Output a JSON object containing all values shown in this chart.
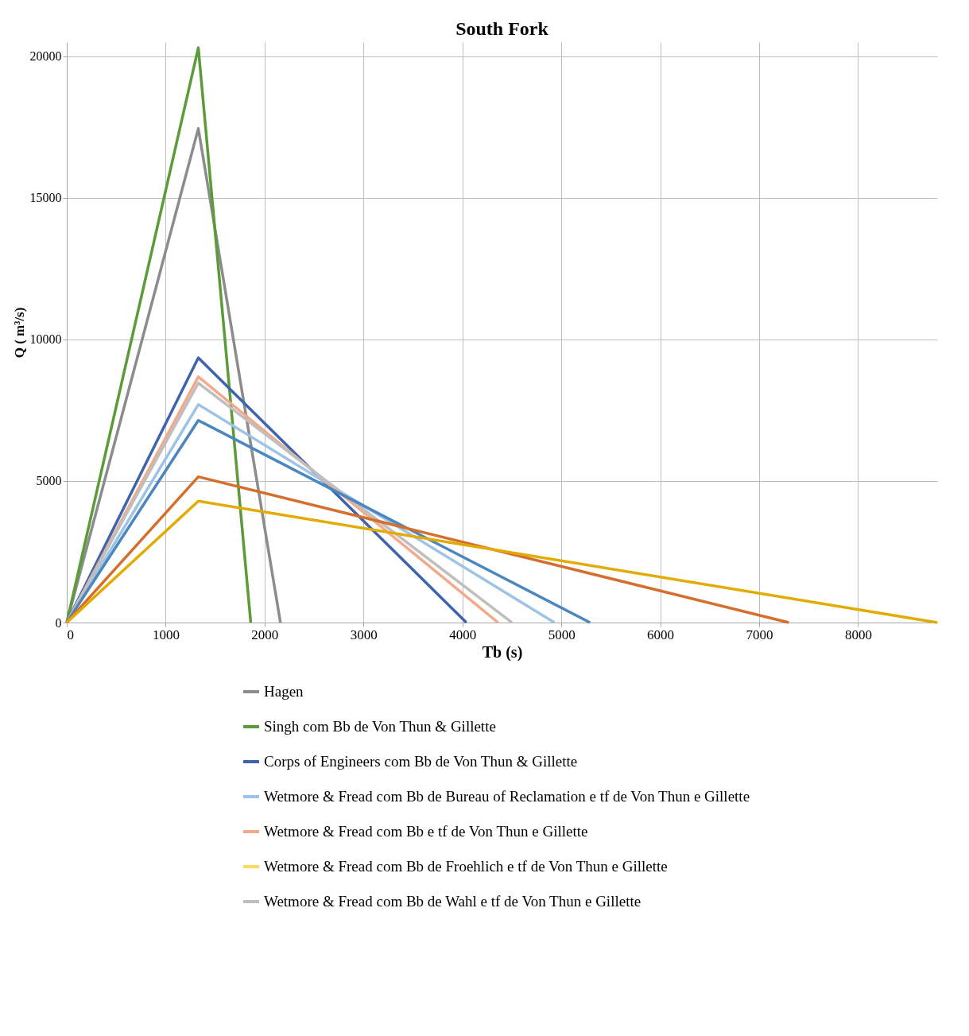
{
  "chart_data": {
    "type": "line",
    "title": "South Fork",
    "xlabel": "Tb (s)",
    "ylabel": "Q ( m³/s)",
    "xlim": [
      0,
      8800
    ],
    "ylim": [
      0,
      20500
    ],
    "xticks": [
      0,
      1000,
      2000,
      3000,
      4000,
      5000,
      6000,
      7000,
      8000
    ],
    "yticks": [
      0,
      5000,
      10000,
      15000,
      20000
    ],
    "grid": true,
    "legend": "bottom",
    "marker": "none",
    "line_style": "solid",
    "series": [
      {
        "name": "Hagen",
        "color": "#8c8c8c",
        "x": [
          0,
          1330,
          2160
        ],
        "values": [
          0,
          17450,
          0
        ]
      },
      {
        "name": "Singh com Bb de  Von Thun & Gillette",
        "color": "#5b9b3a",
        "x": [
          0,
          1330,
          1860
        ],
        "values": [
          0,
          20300,
          0
        ]
      },
      {
        "name": "Corps of Engineers com Bb de  Von Thun & Gillette",
        "color": "#3f64ad",
        "x": [
          0,
          1330,
          4040
        ],
        "values": [
          0,
          9350,
          0
        ]
      },
      {
        "name": "Wetmore & Fread com Bb de Bureau of Reclamation e tf de Von Thun e Gillette",
        "color": "#9dc3e6",
        "x": [
          0,
          1330,
          4930
        ],
        "values": [
          0,
          7700,
          0
        ]
      },
      {
        "name": "Wetmore & Fread com Bb e tf de Von Thun e Gillette",
        "color": "#f4a98a",
        "x": [
          0,
          1330,
          4360
        ],
        "values": [
          0,
          8680,
          0
        ]
      },
      {
        "name": "Wetmore & Fread com Bb de Froehlich e tf de Von Thun e Gillette",
        "color": "#ffd966"
      },
      {
        "name": "Wetmore & Fread com Bb de Wahl e tf de Von Thun e Gillette",
        "color": "#bfbfbf",
        "x": [
          0,
          1330,
          4500
        ],
        "values": [
          0,
          8460,
          0
        ]
      },
      {
        "color": "#4a86c0",
        "x": [
          0,
          1330,
          5290
        ],
        "values": [
          0,
          7140,
          0
        ]
      },
      {
        "color": "#d56f2e",
        "x": [
          0,
          1330,
          7300
        ],
        "values": [
          0,
          5150,
          0
        ]
      },
      {
        "color": "#e2ab00",
        "x": [
          0,
          1330,
          8800
        ],
        "values": [
          0,
          4290,
          0
        ]
      }
    ]
  }
}
